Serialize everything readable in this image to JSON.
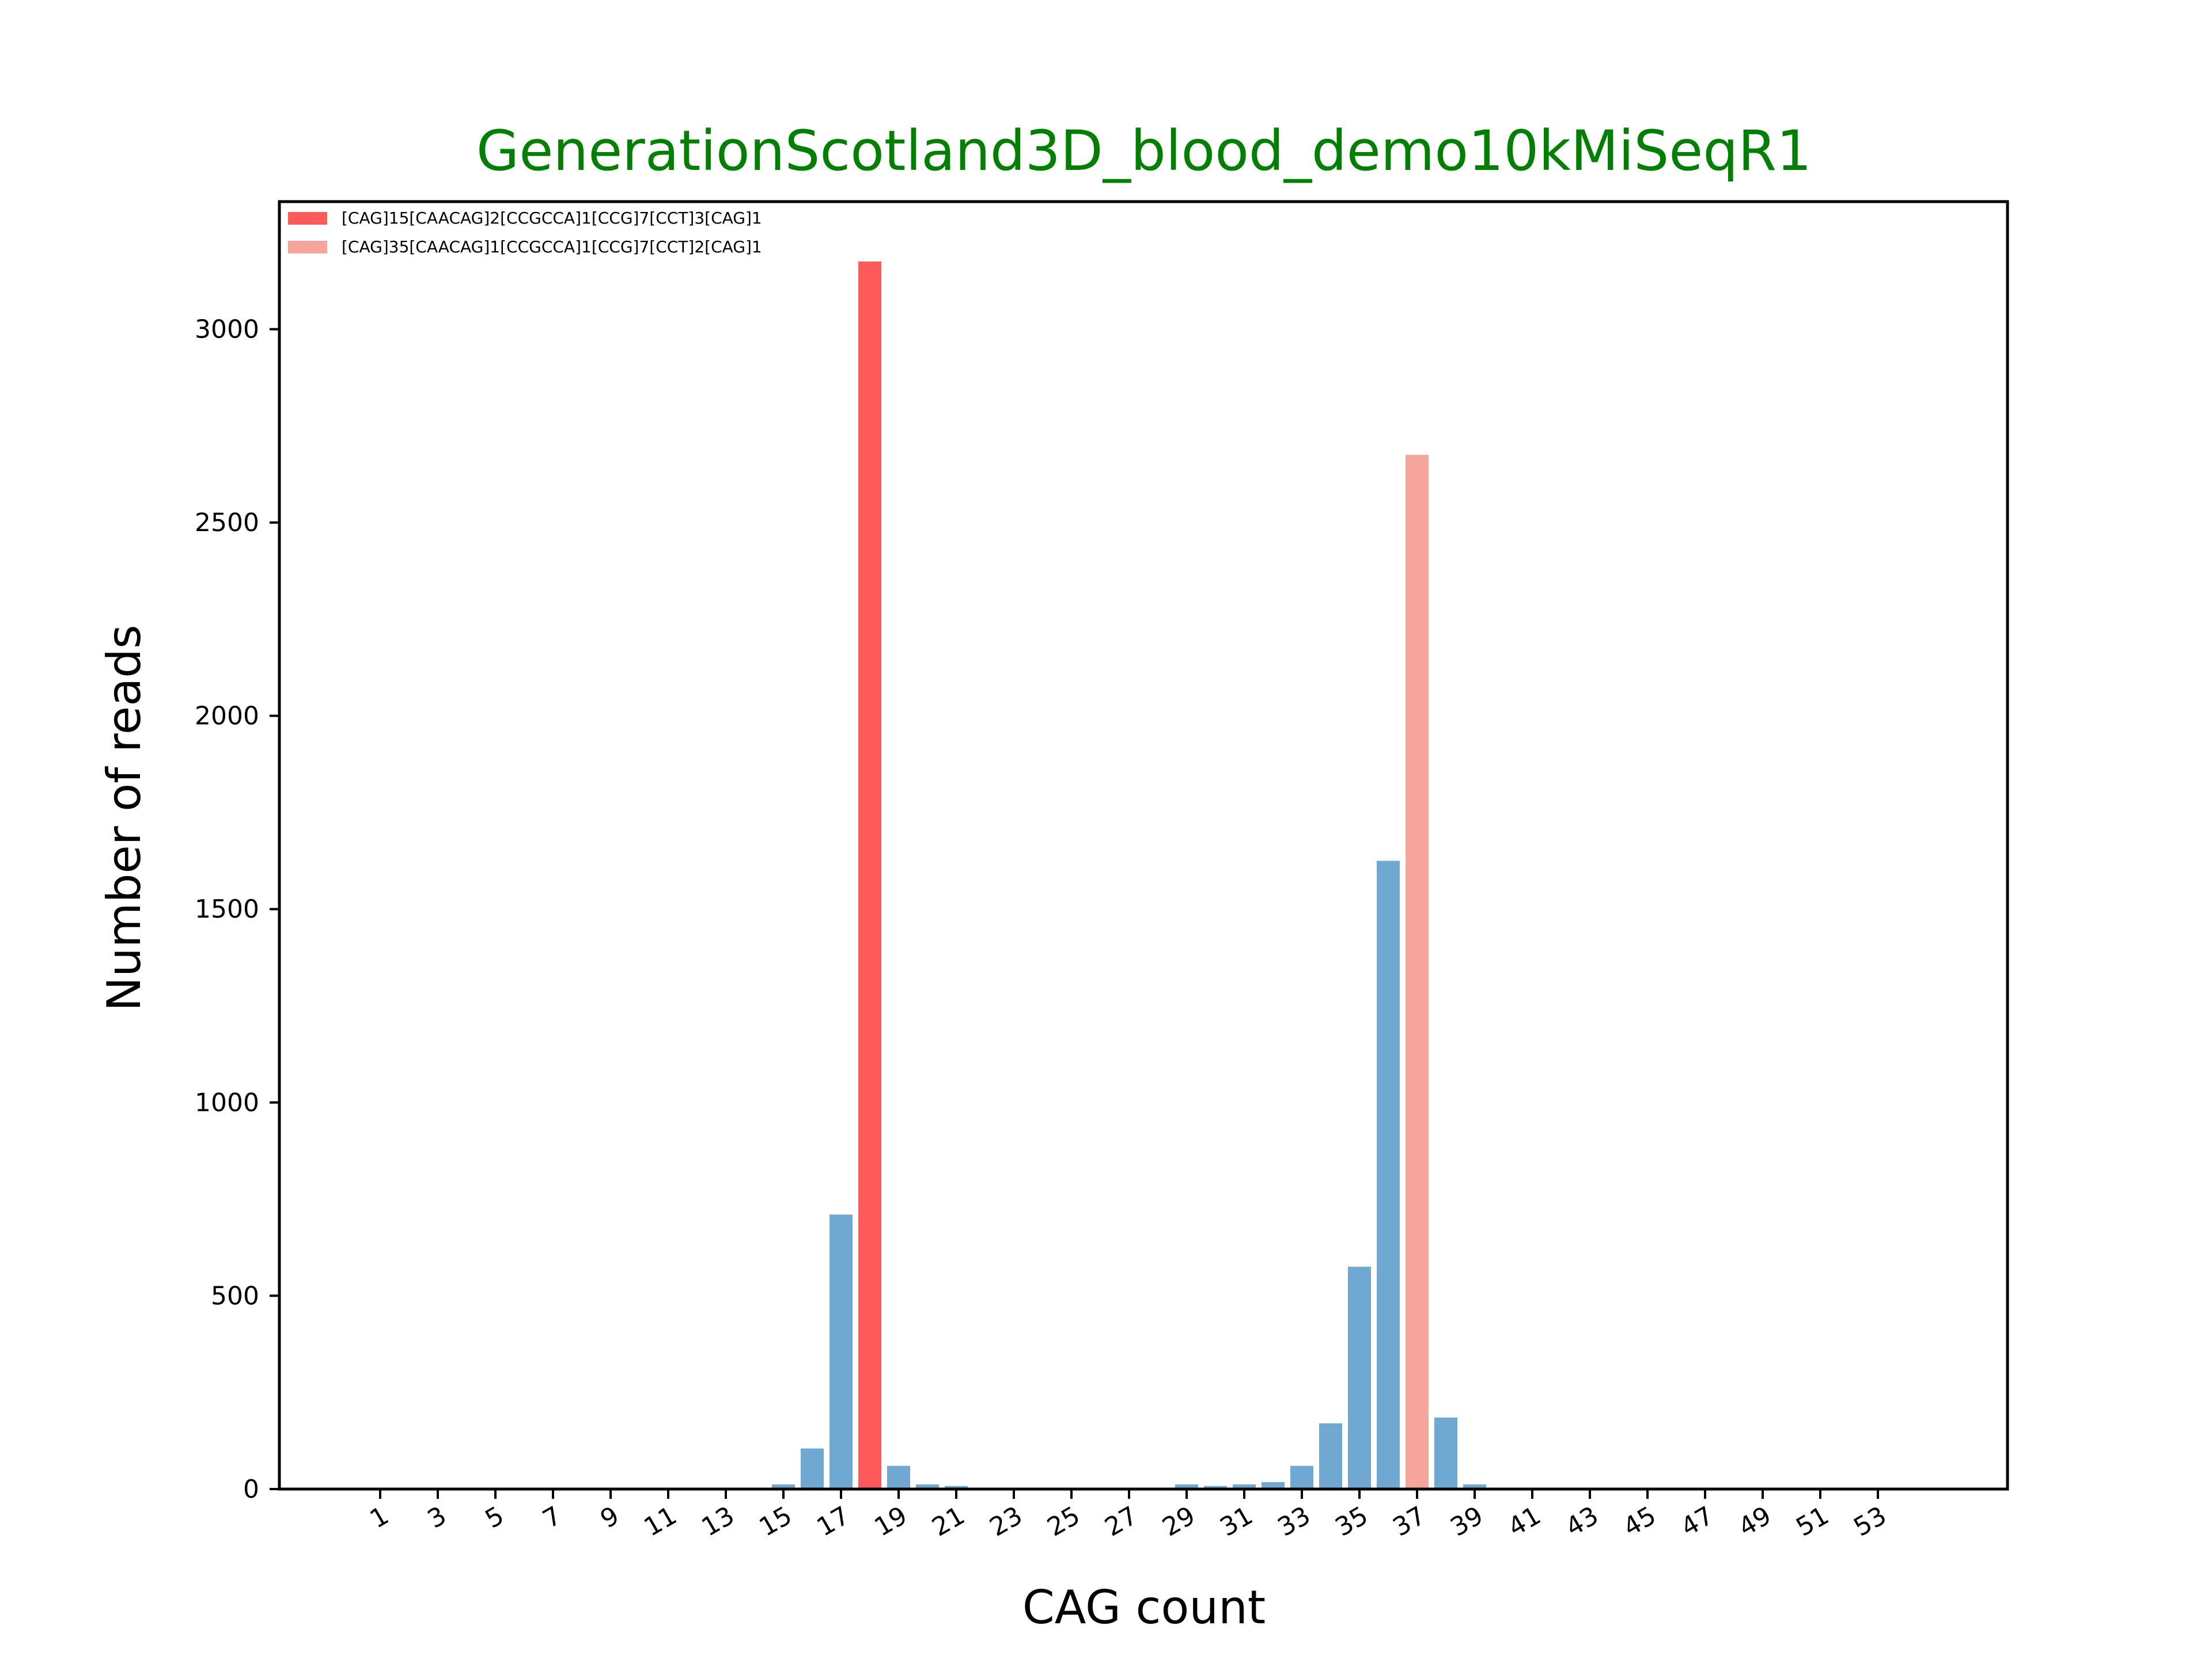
{
  "chart_data": {
    "type": "bar",
    "title": "GenerationScotland3D_blood_demo10kMiSeqR1",
    "xlabel": "CAG count",
    "ylabel": "Number of reads",
    "xlim": [
      -2.5,
      57.5
    ],
    "ylim": [
      0,
      3330
    ],
    "x_ticks": [
      1,
      3,
      5,
      7,
      9,
      11,
      13,
      15,
      17,
      19,
      21,
      23,
      25,
      27,
      29,
      31,
      33,
      35,
      37,
      39,
      41,
      43,
      45,
      47,
      49,
      51,
      53
    ],
    "y_ticks": [
      0,
      500,
      1000,
      1500,
      2000,
      2500,
      3000
    ],
    "grid": false,
    "legend_position": "top-left",
    "series": [
      {
        "color": "#6fa8d0",
        "x": [
          15,
          16,
          17,
          19,
          20,
          21,
          29,
          30,
          31,
          32,
          33,
          34,
          35,
          36,
          38,
          39
        ],
        "values": [
          12,
          105,
          710,
          60,
          12,
          8,
          12,
          8,
          12,
          18,
          60,
          170,
          575,
          1625,
          185,
          12
        ]
      },
      {
        "name": "[CAG]15[CAACAG]2[CCGCCA]1[CCG]7[CCT]3[CAG]1",
        "color": "#ff5a5a",
        "x": [
          18
        ],
        "values": [
          3175
        ]
      },
      {
        "name": "[CAG]35[CAACAG]1[CCGCCA]1[CCG]7[CCT]2[CAG]1",
        "color": "#f5a59b",
        "x": [
          37
        ],
        "values": [
          2675
        ]
      }
    ],
    "colors": {
      "title": "#008000",
      "axis": "#000000"
    }
  }
}
